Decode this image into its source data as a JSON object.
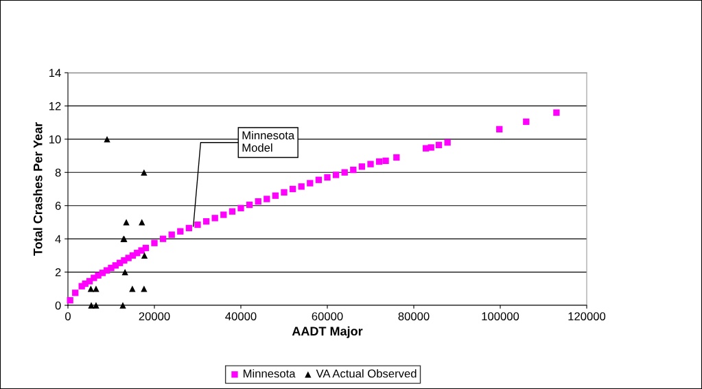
{
  "chart_data": {
    "type": "scatter",
    "xlabel": "AADT Major",
    "ylabel": "Total Crashes Per Year",
    "xlim": [
      0,
      120000
    ],
    "xticks": [
      0,
      20000,
      40000,
      60000,
      80000,
      100000,
      120000
    ],
    "ylim": [
      0,
      14
    ],
    "yticks": [
      0,
      2,
      4,
      6,
      8,
      10,
      12,
      14
    ],
    "grid": "y",
    "legend": "bottom",
    "series": [
      {
        "name": "Minnesota",
        "color": "#ff00ff",
        "marker": "square",
        "x": [
          500,
          1700,
          3200,
          4000,
          5000,
          6000,
          7000,
          8000,
          9000,
          10000,
          11000,
          12000,
          13000,
          14000,
          15000,
          16000,
          17000,
          18000,
          20000,
          22000,
          24000,
          26000,
          28000,
          30000,
          32000,
          34000,
          36000,
          38000,
          40000,
          42000,
          44000,
          46000,
          48000,
          50000,
          52000,
          54000,
          56000,
          58000,
          60000,
          62000,
          64000,
          66000,
          68000,
          70000,
          72000,
          73500,
          76000,
          82800,
          84000,
          85800,
          87800,
          99800,
          106000,
          113000
        ],
        "values": [
          0.3,
          0.75,
          1.15,
          1.3,
          1.45,
          1.65,
          1.8,
          1.95,
          2.1,
          2.25,
          2.4,
          2.55,
          2.7,
          2.85,
          3.0,
          3.15,
          3.3,
          3.45,
          3.75,
          4.0,
          4.25,
          4.45,
          4.65,
          4.85,
          5.05,
          5.25,
          5.45,
          5.65,
          5.85,
          6.05,
          6.25,
          6.4,
          6.6,
          6.8,
          7.0,
          7.15,
          7.35,
          7.55,
          7.7,
          7.85,
          8.0,
          8.15,
          8.35,
          8.5,
          8.65,
          8.7,
          8.9,
          9.45,
          9.5,
          9.65,
          9.8,
          10.6,
          11.05,
          11.6
        ]
      },
      {
        "name": "VA Actual Observed",
        "color": "#000000",
        "marker": "triangle",
        "x": [
          9050,
          17600,
          13500,
          17100,
          12860,
          13000,
          17700,
          13200,
          14900,
          17600,
          5300,
          6500,
          5400,
          6500,
          12700
        ],
        "values": [
          10,
          8,
          5,
          5,
          4,
          4,
          3,
          2,
          1,
          1,
          1,
          1,
          0,
          0,
          0
        ]
      }
    ],
    "annotations": [
      {
        "text": "Minnesota\nModel",
        "x": 29000,
        "y": 4.75
      }
    ]
  }
}
